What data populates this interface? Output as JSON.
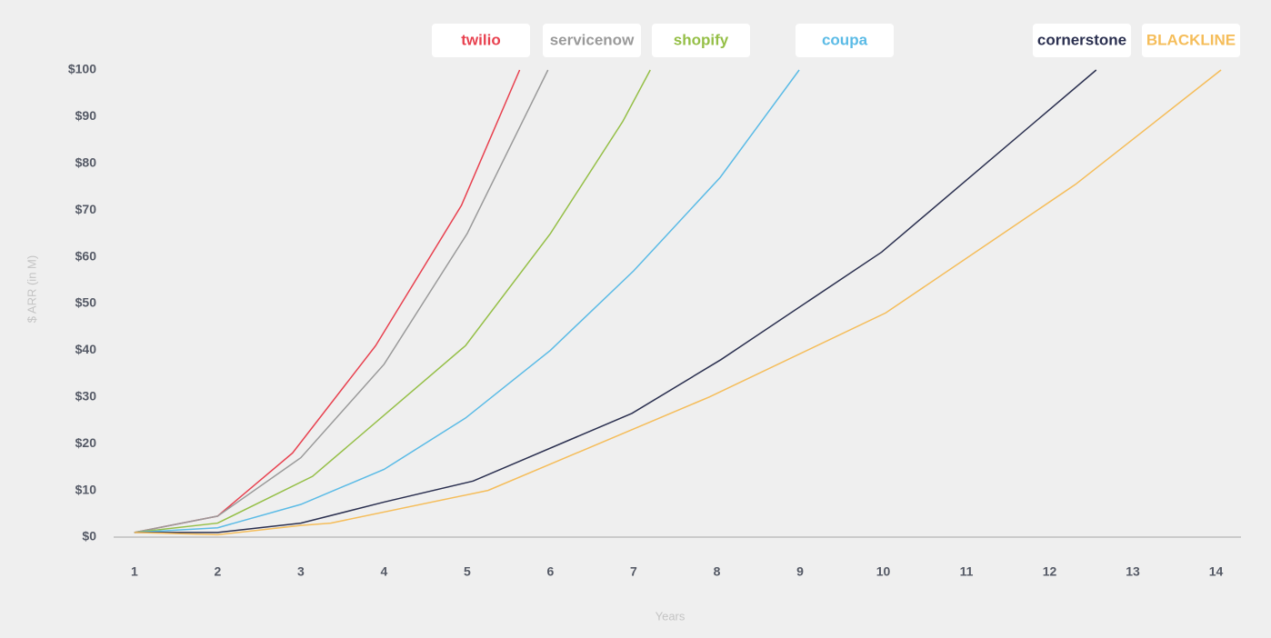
{
  "chart_data": {
    "type": "line",
    "y_label": "$ ARR (in M)",
    "x_label": "Years",
    "xlim": [
      0.75,
      14.3
    ],
    "xticks": [
      1,
      2,
      3,
      4,
      5,
      6,
      7,
      8,
      9,
      10,
      11,
      12,
      13,
      14
    ],
    "ylim": [
      0,
      100
    ],
    "yticks": [
      {
        "value": 0,
        "label": "$0"
      },
      {
        "value": 10,
        "label": "$10"
      },
      {
        "value": 20,
        "label": "$20"
      },
      {
        "value": 30,
        "label": "$30"
      },
      {
        "value": 40,
        "label": "$40"
      },
      {
        "value": 50,
        "label": "$50"
      },
      {
        "value": 60,
        "label": "$60"
      },
      {
        "value": 70,
        "label": "$70"
      },
      {
        "value": 80,
        "label": "$80"
      },
      {
        "value": 90,
        "label": "$90"
      },
      {
        "value": 100,
        "label": "$100"
      }
    ],
    "series": [
      {
        "name": "twilio",
        "color": "#e8414f",
        "x": [
          1,
          2,
          2.9,
          3.9,
          4.93,
          5.63
        ],
        "values": [
          1,
          4.5,
          18,
          41,
          71,
          100
        ]
      },
      {
        "name": "servicenow",
        "color": "#9a9a9a",
        "x": [
          1,
          2,
          3,
          4,
          5,
          5.97
        ],
        "values": [
          1,
          4.5,
          17,
          37,
          65,
          100
        ]
      },
      {
        "name": "shopify",
        "color": "#95bf47",
        "x": [
          1,
          2,
          3.14,
          4.98,
          6,
          6.87,
          7.2
        ],
        "values": [
          1,
          3,
          13,
          41,
          65,
          89,
          100
        ]
      },
      {
        "name": "coupa",
        "color": "#5bbbe6",
        "x": [
          1,
          2,
          3,
          4,
          4.98,
          6,
          7,
          8.04,
          8.99
        ],
        "values": [
          1,
          2,
          7,
          14.5,
          25.5,
          40,
          57,
          77,
          100
        ]
      },
      {
        "name": "cornerstone",
        "color": "#2b3050",
        "x": [
          1,
          2,
          3,
          4,
          5.07,
          6.98,
          8.05,
          9.98,
          12.56
        ],
        "values": [
          1,
          1,
          3,
          7.5,
          12,
          26.5,
          38,
          61,
          100
        ]
      },
      {
        "name": "BLACKLINE",
        "color": "#f5bd5a",
        "x": [
          1,
          2,
          3,
          3.36,
          5.25,
          7.91,
          10.03,
          12.31,
          14.06
        ],
        "values": [
          1,
          0.5,
          2.5,
          3,
          10,
          30,
          48,
          75.5,
          100
        ]
      }
    ]
  }
}
